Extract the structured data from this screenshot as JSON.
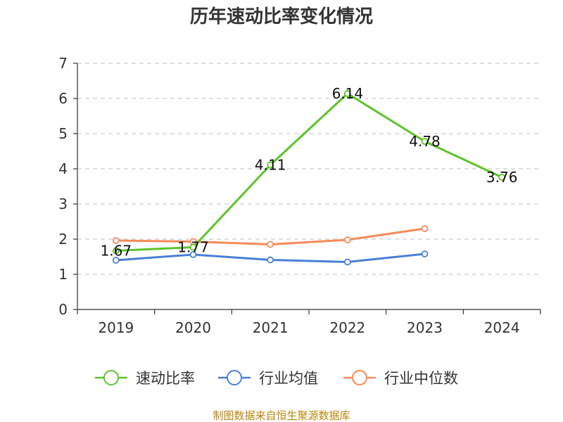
{
  "chart_data": {
    "type": "line",
    "title": "历年速动比率变化情况",
    "xlabel": "",
    "ylabel": "",
    "categories": [
      "2019",
      "2020",
      "2021",
      "2022",
      "2023",
      "2024"
    ],
    "ylim": [
      0,
      7
    ],
    "yticks": [
      "0",
      "1",
      "2",
      "3",
      "4",
      "5",
      "6",
      "7"
    ],
    "grid": true,
    "legend_position": "bottom",
    "series": [
      {
        "name": "速动比率",
        "color": "#5dc42a",
        "values": [
          1.67,
          1.77,
          4.11,
          6.14,
          4.78,
          3.76
        ],
        "labels": [
          "1.67",
          "1.77",
          "4.11",
          "6.14",
          "4.78",
          "3.76"
        ]
      },
      {
        "name": "行业均值",
        "color": "#4a7fd6",
        "values": [
          1.4,
          1.56,
          1.41,
          1.35,
          1.58,
          null
        ]
      },
      {
        "name": "行业中位数",
        "color": "#f48b5a",
        "values": [
          1.96,
          1.93,
          1.85,
          1.98,
          2.3,
          null
        ]
      }
    ]
  },
  "source": "制图数据来自恒生聚源数据库"
}
